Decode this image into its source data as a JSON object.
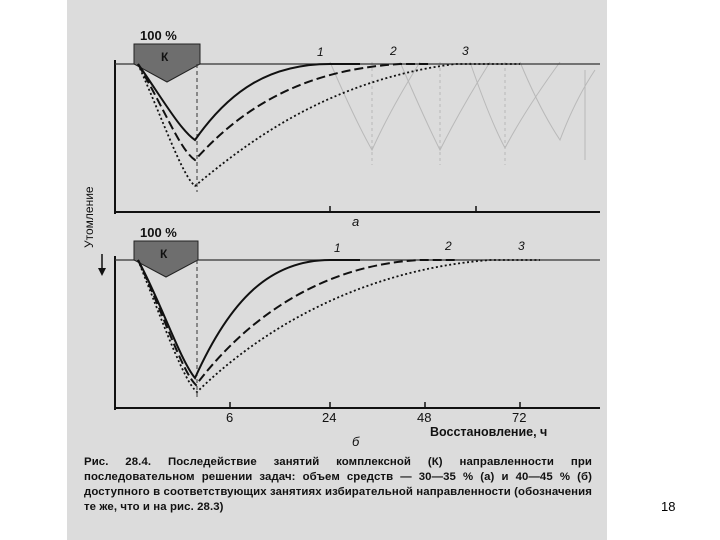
{
  "figure": {
    "panel_a": {
      "percent_label": "100 %",
      "block_label": "К",
      "curve_labels": [
        "1",
        "2",
        "3"
      ],
      "panel_letter": "а"
    },
    "panel_b": {
      "percent_label": "100 %",
      "block_label": "К",
      "curve_labels": [
        "1",
        "2",
        "3"
      ],
      "panel_letter": "б"
    },
    "y_axis_label": "Утомление",
    "x_ticks": [
      "6",
      "24",
      "48",
      "72"
    ],
    "x_axis_label": "Восстановление, ч",
    "colors": {
      "scan_bg": "#dcdcdc",
      "ink": "#111111",
      "block_fill": "#6e6e6e"
    }
  },
  "caption": {
    "label": "Рис. 28.4.",
    "text": "Последействие занятий комплексной (К) направленности при последовательном решении задач: объем средств — 30—35 % (а) и 40—45 % (б) доступного в соответствующих занятиях избирательной направленности (обозначения те же, что и на рис. 28.3)"
  },
  "page_number": "18"
}
